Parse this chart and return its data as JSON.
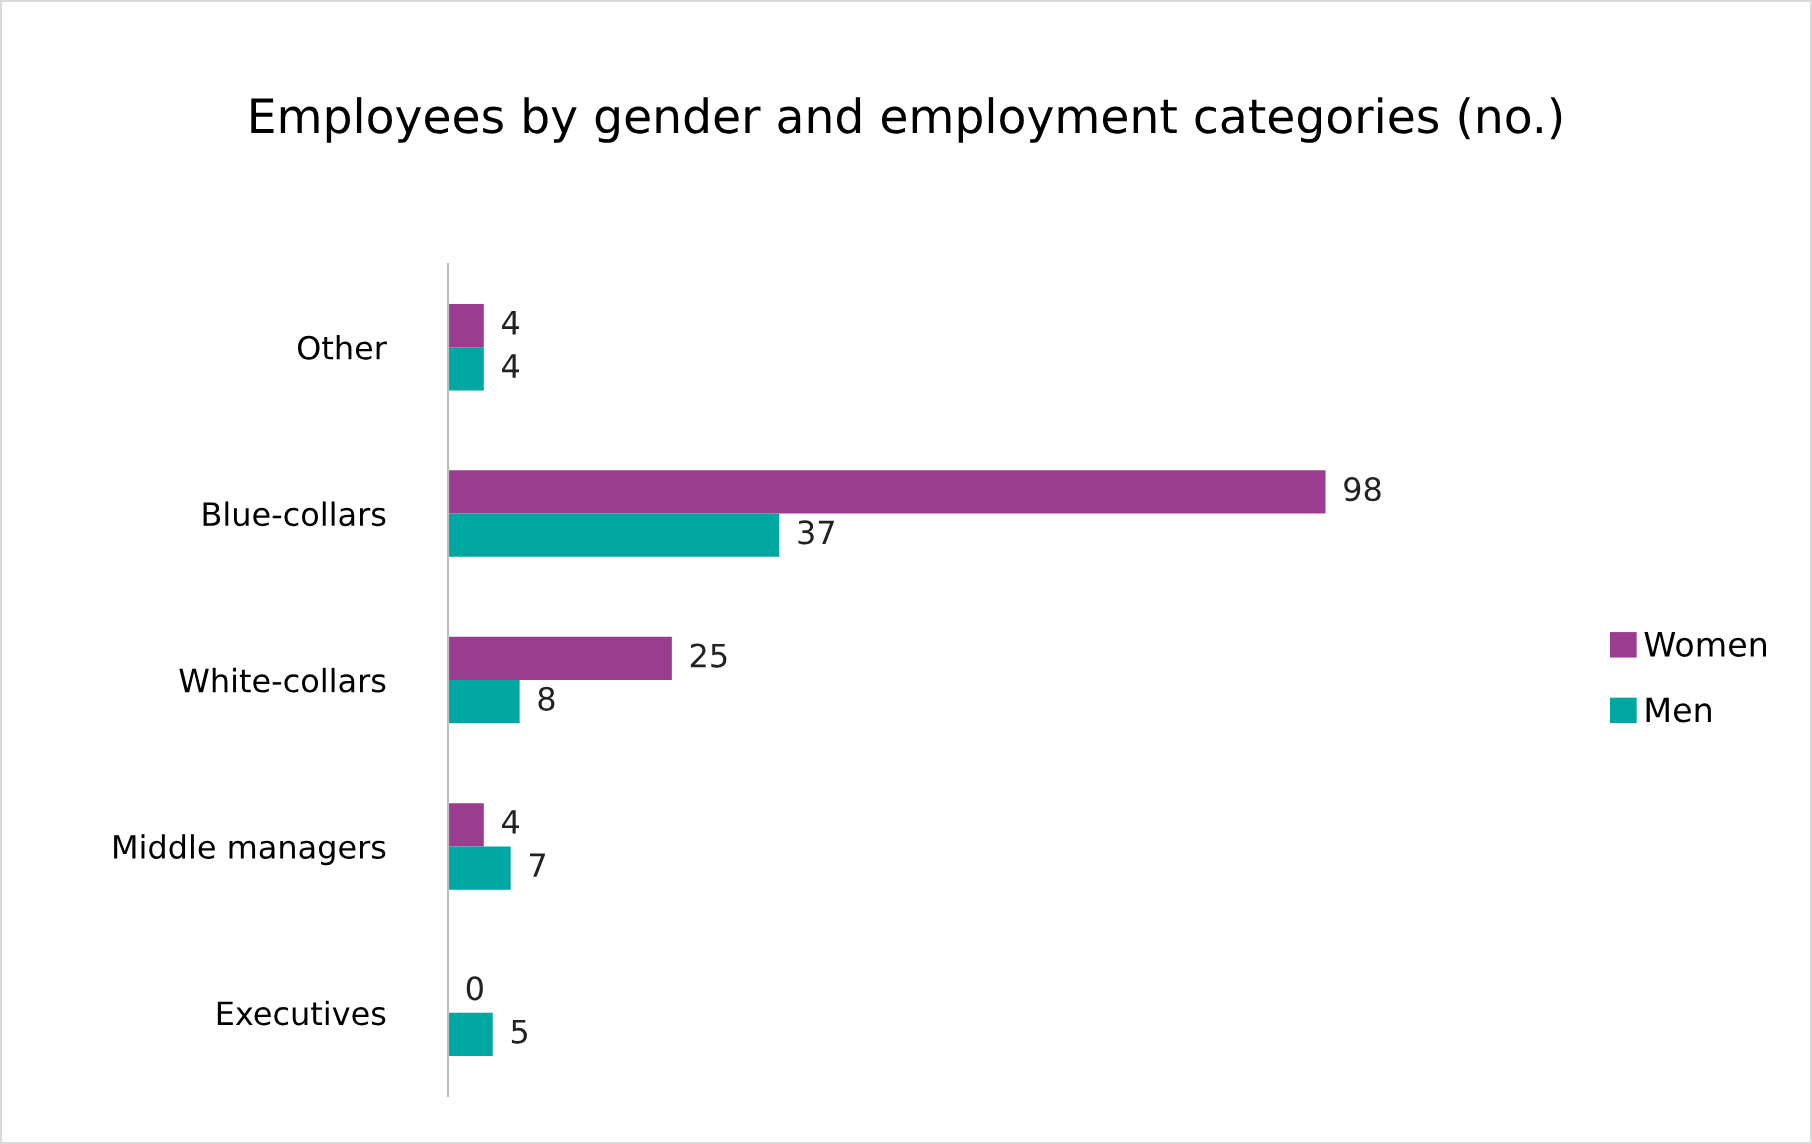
{
  "chart_data": {
    "type": "bar",
    "orientation": "horizontal",
    "title": "Employees by gender and employment categories (no.)",
    "categories": [
      "Other",
      "Blue-collars",
      "White-collars",
      "Middle managers",
      "Executives"
    ],
    "series": [
      {
        "name": "Women",
        "color": "#9b3d8f",
        "values": [
          4,
          98,
          25,
          4,
          0
        ]
      },
      {
        "name": "Men",
        "color": "#00a6a0",
        "values": [
          4,
          37,
          8,
          7,
          5
        ]
      }
    ],
    "data_labels": true,
    "legend": "right",
    "grid": false,
    "tick_labels": "y"
  }
}
